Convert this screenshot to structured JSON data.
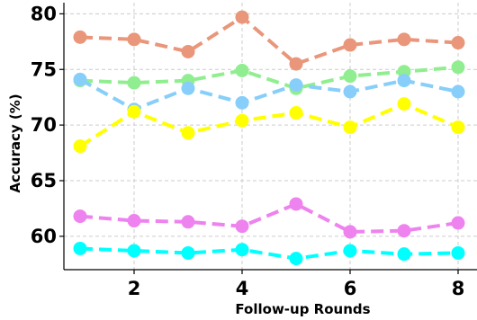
{
  "chart_data": {
    "type": "line",
    "title": "",
    "xlabel": "Follow-up Rounds",
    "ylabel": "Accuracy (%)",
    "xlim": [
      0.7,
      8.35
    ],
    "ylim": [
      57,
      81
    ],
    "xticks": [
      2,
      4,
      6,
      8
    ],
    "yticks": [
      60,
      65,
      70,
      75,
      80
    ],
    "grid": true,
    "x": [
      1,
      2,
      3,
      4,
      5,
      6,
      7,
      8
    ],
    "series": [
      {
        "color": "#E9967A",
        "values": [
          77.9,
          77.7,
          76.6,
          79.7,
          75.5,
          77.2,
          77.7,
          77.4
        ]
      },
      {
        "color": "#90EE90",
        "values": [
          74.0,
          73.8,
          74.0,
          74.9,
          73.3,
          74.4,
          74.8,
          75.2
        ]
      },
      {
        "color": "#87CEFA",
        "values": [
          74.1,
          71.4,
          73.3,
          72.0,
          73.6,
          73.0,
          74.0,
          73.0
        ]
      },
      {
        "color": "#FFFF00",
        "values": [
          68.1,
          71.2,
          69.3,
          70.4,
          71.1,
          69.8,
          71.9,
          69.8
        ]
      },
      {
        "color": "#EE82EE",
        "values": [
          61.8,
          61.4,
          61.3,
          60.9,
          62.9,
          60.4,
          60.5,
          61.2
        ]
      },
      {
        "color": "#00FFFF",
        "values": [
          58.9,
          58.7,
          58.5,
          58.8,
          58.0,
          58.7,
          58.4,
          58.5
        ]
      }
    ]
  }
}
